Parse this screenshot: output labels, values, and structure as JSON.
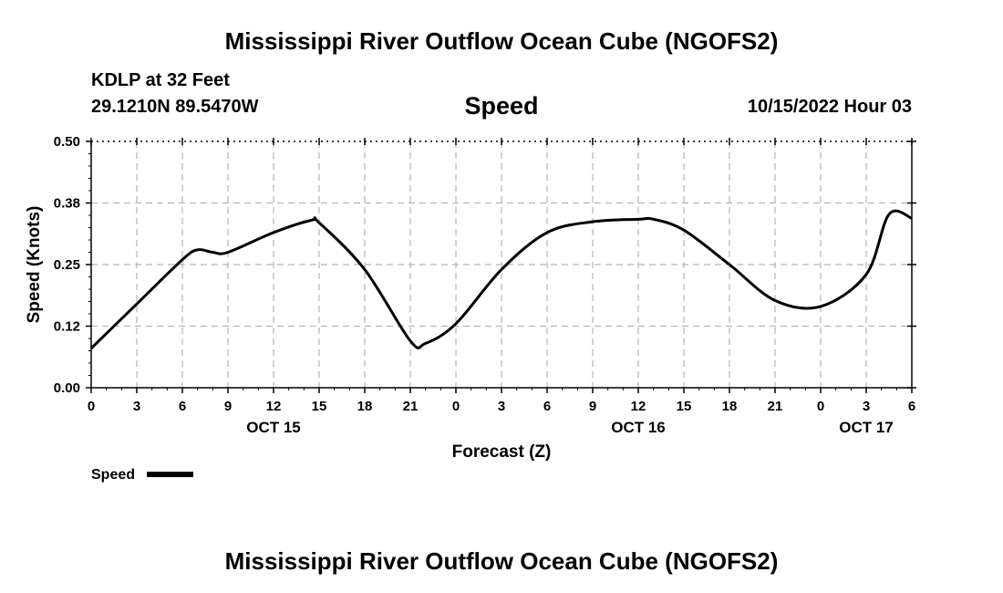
{
  "header": {
    "title": "Mississippi River Outflow Ocean Cube (NGOFS2)",
    "station": "KDLP at 32 Feet",
    "coordinates": "29.1210N  89.5470W",
    "subtitle": "Speed",
    "timestamp": "10/15/2022 Hour 03"
  },
  "footer": {
    "title": "Mississippi River Outflow Ocean Cube (NGOFS2)"
  },
  "chart_data": {
    "type": "line",
    "title": "Speed",
    "xlabel": "Forecast (Z)",
    "ylabel": "Speed (Knots)",
    "ylim": [
      0,
      0.5
    ],
    "xlim": [
      0,
      54
    ],
    "x_unit": "hours from 10/15/2022 00Z",
    "y_ticks": [
      0.0,
      0.125,
      0.25,
      0.375,
      0.5
    ],
    "y_tick_labels": [
      "0.00",
      "0.12",
      "0.25",
      "0.38",
      "0.50"
    ],
    "x_ticks": [
      0,
      3,
      6,
      9,
      12,
      15,
      18,
      21,
      24,
      27,
      30,
      33,
      36,
      39,
      42,
      45,
      48,
      51,
      54
    ],
    "x_tick_labels": [
      "0",
      "3",
      "6",
      "9",
      "12",
      "15",
      "18",
      "21",
      "0",
      "3",
      "6",
      "9",
      "12",
      "15",
      "18",
      "21",
      "0",
      "3",
      "6"
    ],
    "date_labels": [
      {
        "x": 12,
        "label": "OCT 15"
      },
      {
        "x": 36,
        "label": "OCT 16"
      },
      {
        "x": 51,
        "label": "OCT 17"
      }
    ],
    "grid": true,
    "legend": "bottom-left",
    "series": [
      {
        "name": "Speed",
        "color": "#000000",
        "x": [
          0,
          3,
          6,
          7,
          8,
          9,
          12,
          14.5,
          15,
          18,
          21,
          22,
          24,
          27,
          30,
          33,
          36,
          37,
          39,
          42,
          45,
          48,
          51,
          52.5,
          54
        ],
        "y": [
          0.08,
          0.17,
          0.26,
          0.28,
          0.275,
          0.275,
          0.315,
          0.34,
          0.335,
          0.24,
          0.095,
          0.09,
          0.13,
          0.24,
          0.315,
          0.337,
          0.342,
          0.342,
          0.32,
          0.25,
          0.177,
          0.165,
          0.23,
          0.352,
          0.344
        ]
      }
    ]
  }
}
